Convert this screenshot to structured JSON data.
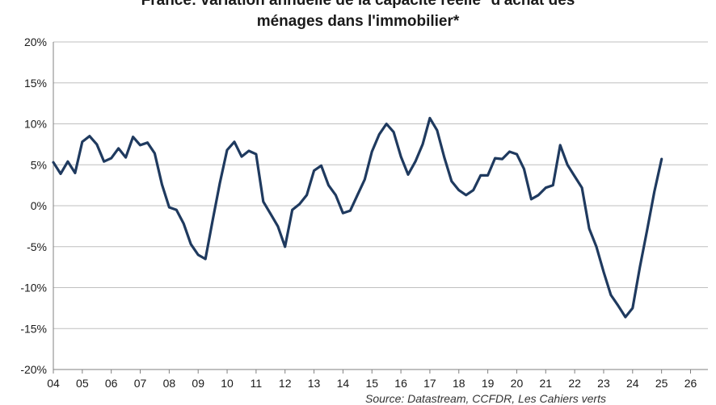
{
  "chart_data": {
    "type": "line",
    "title_lines": [
      "France: variation annuelle de la capacité réelle* d'achat des",
      "ménages dans l'immobilier*"
    ],
    "source": "Source: Datastream, CCFDR, Les Cahiers verts",
    "xlabel": "",
    "ylabel": "",
    "ylim": [
      -20,
      20
    ],
    "y_ticks": [
      20,
      15,
      10,
      5,
      0,
      -5,
      -10,
      -15,
      -20
    ],
    "y_tick_labels": [
      "20%",
      "15%",
      "10%",
      "5%",
      "0%",
      "-5%",
      "-10%",
      "-15%",
      "-20%"
    ],
    "xlim": [
      2004,
      2026.6
    ],
    "x_tick_values": [
      2004,
      2005,
      2006,
      2007,
      2008,
      2009,
      2010,
      2011,
      2012,
      2013,
      2014,
      2015,
      2016,
      2017,
      2018,
      2019,
      2020,
      2021,
      2022,
      2023,
      2024,
      2025,
      2026
    ],
    "x_tick_labels": [
      "04",
      "05",
      "06",
      "07",
      "08",
      "09",
      "10",
      "11",
      "12",
      "13",
      "14",
      "15",
      "16",
      "17",
      "18",
      "19",
      "20",
      "21",
      "22",
      "23",
      "24",
      "25",
      "26"
    ],
    "grid": true,
    "colors": {
      "line": "#1f3a5f",
      "grid": "#bfbfbf",
      "axis": "#808080"
    },
    "series": [
      {
        "x": [
          2004.0,
          2004.25,
          2004.5,
          2004.75,
          2005.0,
          2005.25,
          2005.5,
          2005.75,
          2006.0,
          2006.25,
          2006.5,
          2006.75,
          2007.0,
          2007.25,
          2007.5,
          2007.75,
          2008.0,
          2008.25,
          2008.5,
          2008.75,
          2009.0,
          2009.25,
          2009.5,
          2009.75,
          2010.0,
          2010.25,
          2010.5,
          2010.75,
          2011.0,
          2011.25,
          2011.5,
          2011.75,
          2012.0,
          2012.25,
          2012.5,
          2012.75,
          2013.0,
          2013.25,
          2013.5,
          2013.75,
          2014.0,
          2014.25,
          2014.5,
          2014.75,
          2015.0,
          2015.25,
          2015.5,
          2015.75,
          2016.0,
          2016.25,
          2016.5,
          2016.75,
          2017.0,
          2017.25,
          2017.5,
          2017.75,
          2018.0,
          2018.25,
          2018.5,
          2018.75,
          2019.0,
          2019.25,
          2019.5,
          2019.75,
          2020.0,
          2020.25,
          2020.5,
          2020.75,
          2021.0,
          2021.25,
          2021.5,
          2021.75,
          2022.0,
          2022.25,
          2022.5,
          2022.75,
          2023.0,
          2023.25,
          2023.5,
          2023.75,
          2024.0,
          2024.25,
          2024.5,
          2024.75,
          2025.0
        ],
        "values": [
          5.3,
          3.9,
          5.4,
          4.0,
          7.8,
          8.5,
          7.5,
          5.4,
          5.8,
          7.0,
          5.9,
          8.4,
          7.4,
          7.7,
          6.4,
          2.6,
          -0.2,
          -0.5,
          -2.2,
          -4.7,
          -6.0,
          -6.5,
          -1.8,
          2.8,
          6.8,
          7.8,
          6.0,
          6.7,
          6.3,
          0.5,
          -1.0,
          -2.5,
          -5.0,
          -0.5,
          0.2,
          1.3,
          4.3,
          4.9,
          2.5,
          1.3,
          -0.9,
          -0.6,
          1.3,
          3.2,
          6.6,
          8.7,
          10.0,
          9.0,
          6.0,
          3.8,
          5.4,
          7.5,
          10.7,
          9.2,
          5.9,
          3.0,
          1.9,
          1.3,
          1.9,
          3.7,
          3.7,
          5.8,
          5.7,
          6.6,
          6.3,
          4.5,
          0.8,
          1.3,
          2.2,
          2.5,
          7.4,
          5.0,
          3.6,
          2.2,
          -2.8,
          -5.0,
          -8.1,
          -10.9,
          -12.2,
          -13.6,
          -12.5,
          -7.5,
          -3.0,
          1.7,
          5.7
        ]
      }
    ]
  }
}
